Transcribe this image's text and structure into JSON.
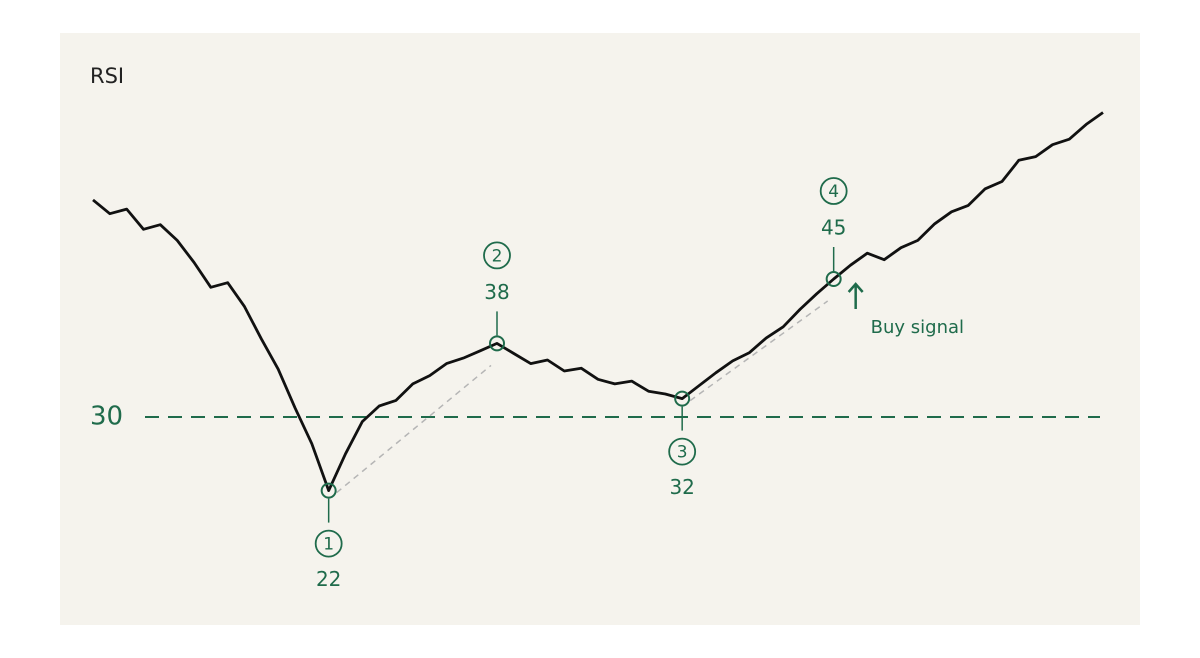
{
  "chart_data": {
    "type": "line",
    "title": "RSI",
    "series": [
      {
        "name": "RSI",
        "color": "#111111",
        "values": [
          53.6,
          52.1,
          52.6,
          50.4,
          50.9,
          49.2,
          46.8,
          44.1,
          44.6,
          42.0,
          38.5,
          35.2,
          31.0,
          27.1,
          22,
          26.0,
          29.5,
          31.2,
          31.8,
          33.6,
          34.5,
          35.8,
          36.4,
          37.2,
          38,
          36.9,
          35.8,
          36.2,
          35.0,
          35.3,
          34.1,
          33.6,
          33.9,
          32.8,
          32.5,
          32,
          33.4,
          34.8,
          36.1,
          37.0,
          38.6,
          39.8,
          41.7,
          43.4,
          45,
          46.5,
          47.8,
          47.1,
          48.4,
          49.2,
          51.0,
          52.3,
          53.0,
          54.8,
          55.6,
          57.9,
          58.3,
          59.6,
          60.2,
          61.8,
          63.1
        ]
      }
    ],
    "ylim": [
      10,
      65
    ],
    "threshold": 30,
    "accent_color": "#1f6b4b",
    "pivots": [
      {
        "label": "1",
        "x": 14,
        "value": 22
      },
      {
        "label": "2",
        "x": 24,
        "value": 38
      },
      {
        "label": "3",
        "x": 35,
        "value": 32
      },
      {
        "label": "4",
        "x": 44,
        "value": 45
      }
    ],
    "signal": "Buy signal"
  }
}
